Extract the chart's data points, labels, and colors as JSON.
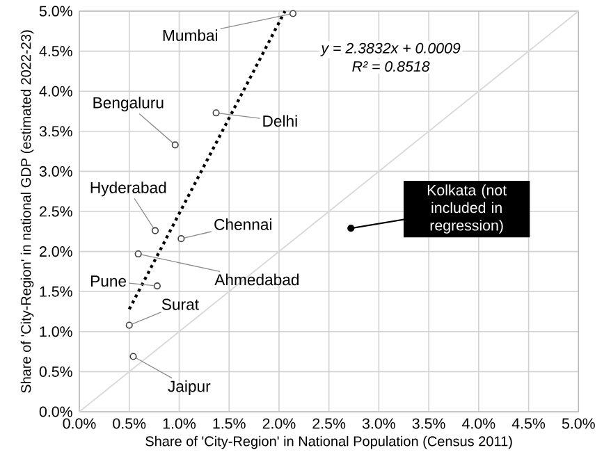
{
  "chart_data": {
    "type": "scatter",
    "xlabel": "Share of 'City-Region' in National Population  (Census 2011)",
    "ylabel": "Share of 'City-Region' in national GDP (estimated 2022-23)",
    "xlim": [
      0,
      5
    ],
    "ylim": [
      0,
      5
    ],
    "xticks": [
      {
        "value": 0,
        "label": "0.0%"
      },
      {
        "value": 0.5,
        "label": "0.5%"
      },
      {
        "value": 1,
        "label": "1.0%"
      },
      {
        "value": 1.5,
        "label": "1.5%"
      },
      {
        "value": 2,
        "label": "2.0%"
      },
      {
        "value": 2.5,
        "label": "2.5%"
      },
      {
        "value": 3,
        "label": "3.0%"
      },
      {
        "value": 3.5,
        "label": "3.5%"
      },
      {
        "value": 4,
        "label": "4.0%"
      },
      {
        "value": 4.5,
        "label": "4.5%"
      },
      {
        "value": 5,
        "label": "5.0%"
      }
    ],
    "yticks": [
      {
        "value": 0,
        "label": "0.0%"
      },
      {
        "value": 0.5,
        "label": "0.5%"
      },
      {
        "value": 1,
        "label": "1.0%"
      },
      {
        "value": 1.5,
        "label": "1.5%"
      },
      {
        "value": 2,
        "label": "2.0%"
      },
      {
        "value": 2.5,
        "label": "2.5%"
      },
      {
        "value": 3,
        "label": "3.0%"
      },
      {
        "value": 3.5,
        "label": "3.5%"
      },
      {
        "value": 4,
        "label": "4.0%"
      },
      {
        "value": 4.5,
        "label": "4.5%"
      },
      {
        "value": 5,
        "label": "5.0%"
      }
    ],
    "grid": true,
    "marker": "circle",
    "series": [
      {
        "type": "line",
        "color": "#d9d9d9",
        "x": [
          0,
          5
        ],
        "values": [
          0,
          5
        ],
        "marker": "none",
        "line_style": "solid"
      },
      {
        "type": "line",
        "color": "#000000",
        "x": [
          0.5,
          2.06
        ],
        "values": [
          1.28,
          5.0
        ],
        "marker": "none",
        "line_style": "dotted"
      },
      {
        "color": "#404040",
        "x": [
          2.14,
          1.37,
          0.96,
          0.76,
          1.02,
          0.59,
          0.78,
          0.5,
          0.54
        ],
        "values": [
          4.97,
          3.73,
          3.33,
          2.26,
          2.16,
          1.97,
          1.57,
          1.08,
          0.69
        ]
      },
      {
        "color": "#000000",
        "x": [
          2.72
        ],
        "values": [
          2.29
        ]
      }
    ],
    "annotations": [
      {
        "text": "Mumbai",
        "x": 2.14,
        "y": 4.97
      },
      {
        "text": "Delhi",
        "x": 1.37,
        "y": 3.73
      },
      {
        "text": "Bengaluru",
        "x": 0.96,
        "y": 3.33
      },
      {
        "text": "Hyderabad",
        "x": 0.76,
        "y": 2.26
      },
      {
        "text": "Chennai",
        "x": 1.02,
        "y": 2.16
      },
      {
        "text": "Ahmedabad",
        "x": 0.59,
        "y": 1.97
      },
      {
        "text": "Pune",
        "x": 0.78,
        "y": 1.57
      },
      {
        "text": "Surat",
        "x": 0.5,
        "y": 1.08
      },
      {
        "text": "Jaipur",
        "x": 0.54,
        "y": 0.69
      },
      {
        "text": "Kolkata (not included in regression)",
        "x": 2.72,
        "y": 2.29
      },
      "y = 2.3832x + 0.0009",
      "R² = 0.8518"
    ]
  }
}
